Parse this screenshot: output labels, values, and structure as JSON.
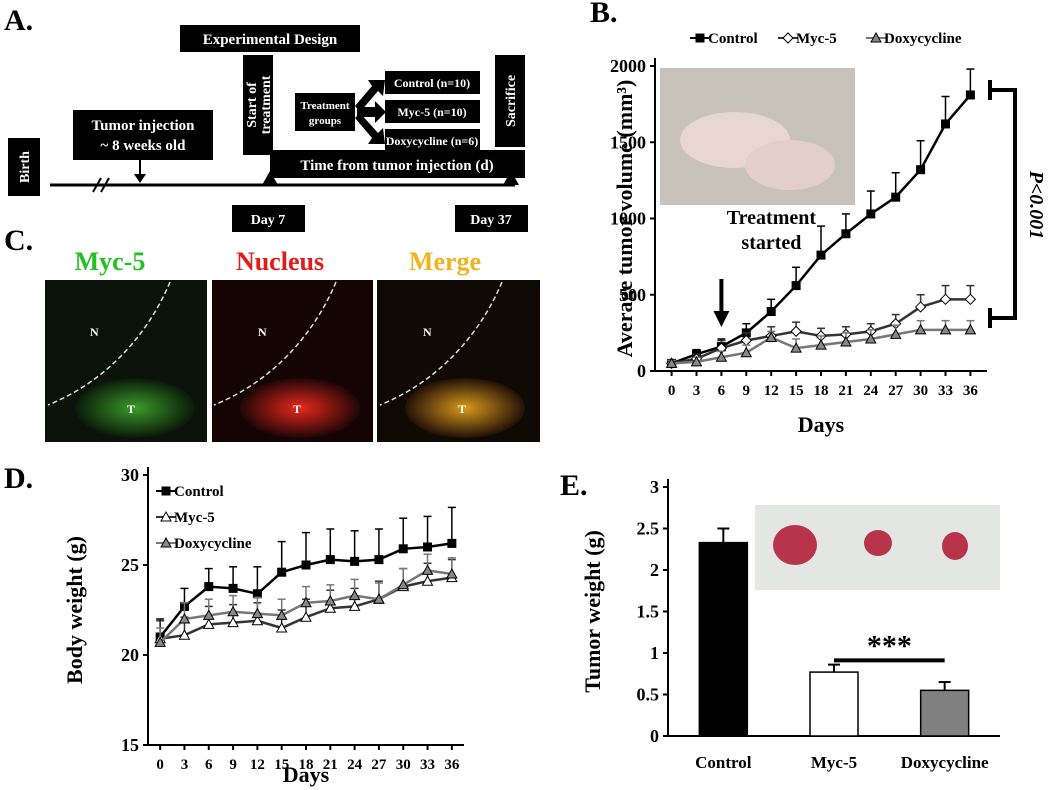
{
  "panels": {
    "a": "A.",
    "b": "B.",
    "c": "C.",
    "d": "D.",
    "e": "E."
  },
  "diagram": {
    "title": "Experimental Design",
    "birth": "Birth",
    "tumor_injection": [
      "Tumor injection",
      "~ 8 weeks old"
    ],
    "start": [
      "Start of",
      "treatment"
    ],
    "groups_label": [
      "Treatment",
      "groups"
    ],
    "groups": [
      "Control (n=10)",
      "Myc-5 (n=10)",
      "Doxycycline (n=6)"
    ],
    "sacrifice": "Sacrifice",
    "timeline": "Time from tumor injection (d)",
    "day_start": "Day 7",
    "day_end": "Day 37"
  },
  "panel_c": {
    "titles": [
      "Myc-5",
      "Nucleus",
      "Merge"
    ],
    "region_labels": [
      "N",
      "T"
    ]
  },
  "chart_data": [
    {
      "type": "line",
      "x_label": "Days",
      "y_label": "Average tumor volume (mm³)",
      "x": [
        0,
        3,
        6,
        9,
        12,
        15,
        18,
        21,
        24,
        27,
        30,
        33,
        36
      ],
      "xlim": [
        -2,
        38
      ],
      "xticks": [
        0,
        3,
        6,
        9,
        12,
        15,
        18,
        21,
        24,
        27,
        30,
        33,
        36
      ],
      "ylim": [
        0,
        2000
      ],
      "yticks": [
        0,
        500,
        1000,
        1500,
        2000
      ],
      "legend": "top",
      "series": [
        {
          "name": "Control",
          "color": "#000000",
          "line_color": "#000000",
          "marker": "square",
          "values": [
            50,
            110,
            160,
            250,
            390,
            560,
            760,
            900,
            1030,
            1140,
            1320,
            1620,
            1810
          ],
          "errors": [
            20,
            30,
            50,
            60,
            80,
            120,
            190,
            130,
            150,
            160,
            190,
            180,
            170
          ]
        },
        {
          "name": "Myc-5",
          "color": "#ffffff",
          "line_color": "#333333",
          "marker": "diamond",
          "values": [
            50,
            80,
            150,
            200,
            230,
            260,
            230,
            240,
            260,
            310,
            420,
            470,
            470
          ],
          "errors": [
            20,
            30,
            50,
            50,
            60,
            60,
            50,
            50,
            50,
            60,
            80,
            90,
            90
          ]
        },
        {
          "name": "Doxycycline",
          "color": "#888888",
          "line_color": "#777777",
          "marker": "triangle",
          "values": [
            50,
            60,
            90,
            120,
            220,
            150,
            170,
            190,
            210,
            240,
            270,
            270,
            270
          ],
          "errors": [
            20,
            30,
            40,
            50,
            40,
            60,
            60,
            60,
            60,
            60,
            60,
            60,
            60
          ]
        }
      ],
      "annotations": {
        "treatment": [
          "Treatment",
          "started"
        ],
        "significance": "P<0.001"
      }
    },
    {
      "type": "line",
      "x_label": "Days",
      "y_label": "Body weight (g)",
      "x": [
        0,
        3,
        6,
        9,
        12,
        15,
        18,
        21,
        24,
        27,
        30,
        33,
        36
      ],
      "xlim": [
        -1.5,
        37.5
      ],
      "xticks": [
        0,
        3,
        6,
        9,
        12,
        15,
        18,
        21,
        24,
        27,
        30,
        33,
        36
      ],
      "ylim": [
        15,
        30
      ],
      "yticks": [
        15,
        20,
        25,
        30
      ],
      "legend": "upper left",
      "series": [
        {
          "name": "Control",
          "color": "#000000",
          "line_color": "#000000",
          "marker": "square",
          "values": [
            21.0,
            22.7,
            23.8,
            23.7,
            23.4,
            24.6,
            25.0,
            25.3,
            25.2,
            25.3,
            25.9,
            26.0,
            26.2
          ],
          "errors": [
            1.0,
            1.0,
            1.0,
            1.2,
            1.5,
            1.7,
            1.8,
            1.7,
            1.7,
            1.7,
            1.7,
            1.7,
            2.0
          ]
        },
        {
          "name": "Myc-5",
          "color": "#ffffff",
          "line_color": "#333333",
          "marker": "triangle",
          "values": [
            20.9,
            21.1,
            21.7,
            21.8,
            21.9,
            21.5,
            22.1,
            22.6,
            22.7,
            23.1,
            23.8,
            24.1,
            24.3
          ],
          "errors": [
            1.0,
            1.0,
            1.0,
            1.0,
            1.0,
            1.0,
            1.0,
            1.0,
            1.0,
            1.0,
            1.0,
            1.0,
            1.0
          ]
        },
        {
          "name": "Doxycycline",
          "color": "#888888",
          "line_color": "#777777",
          "marker": "triangle",
          "values": [
            20.7,
            22.0,
            22.2,
            22.4,
            22.3,
            22.2,
            22.9,
            23.0,
            23.3,
            23.1,
            23.9,
            24.7,
            24.5
          ],
          "errors": [
            0.8,
            0.9,
            0.9,
            0.9,
            0.9,
            0.9,
            0.9,
            0.9,
            0.9,
            0.9,
            0.9,
            0.9,
            0.9
          ]
        }
      ]
    },
    {
      "type": "bar",
      "y_label": "Tumor weight (g)",
      "categories": [
        "Control",
        "Myc-5",
        "Doxycycline"
      ],
      "values": [
        2.33,
        0.77,
        0.55
      ],
      "errors": [
        0.17,
        0.09,
        0.1
      ],
      "colors": [
        "#000000",
        "#ffffff",
        "#808080"
      ],
      "ylim": [
        0,
        3
      ],
      "yticks": [
        0,
        0.5,
        1,
        1.5,
        2,
        2.5,
        3
      ],
      "annotations": {
        "significance": "***"
      }
    }
  ]
}
